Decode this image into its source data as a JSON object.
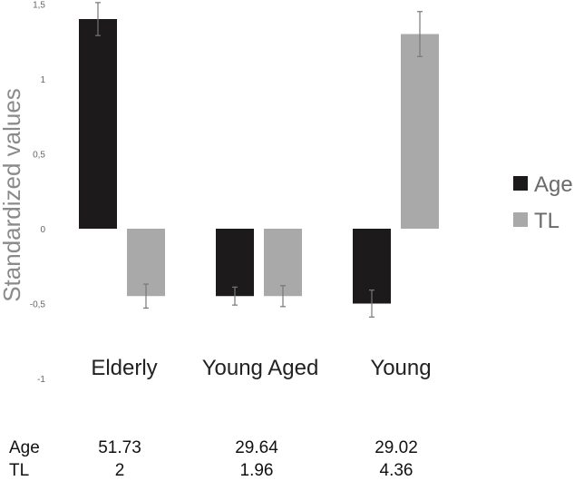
{
  "chart_data": {
    "type": "bar",
    "title": "",
    "xlabel": "",
    "ylabel": "Standardized values",
    "ylim": [
      -1,
      1.5
    ],
    "yticks": [
      "1,5",
      "1",
      "0,5",
      "0",
      "-0,5",
      "-1"
    ],
    "ytick_values": [
      1.5,
      1,
      0.5,
      0,
      -0.5,
      -1
    ],
    "categories": [
      "Elderly",
      "Young Aged",
      "Young"
    ],
    "series": [
      {
        "name": "Age",
        "color": "#1c1a1b",
        "values": [
          1.4,
          -0.45,
          -0.5
        ],
        "errors": [
          0.11,
          0.06,
          0.09
        ]
      },
      {
        "name": "TL",
        "color": "#a9a9a9",
        "values": [
          -0.45,
          -0.45,
          1.3
        ],
        "errors": [
          0.08,
          0.07,
          0.15
        ]
      }
    ],
    "legend_position": "right",
    "grid": false,
    "table": {
      "rows": [
        {
          "label": "Age",
          "values": [
            "51.73",
            "29.64",
            "29.02"
          ]
        },
        {
          "label": "TL",
          "values": [
            "2",
            "1.96",
            "4.36"
          ]
        }
      ]
    }
  }
}
